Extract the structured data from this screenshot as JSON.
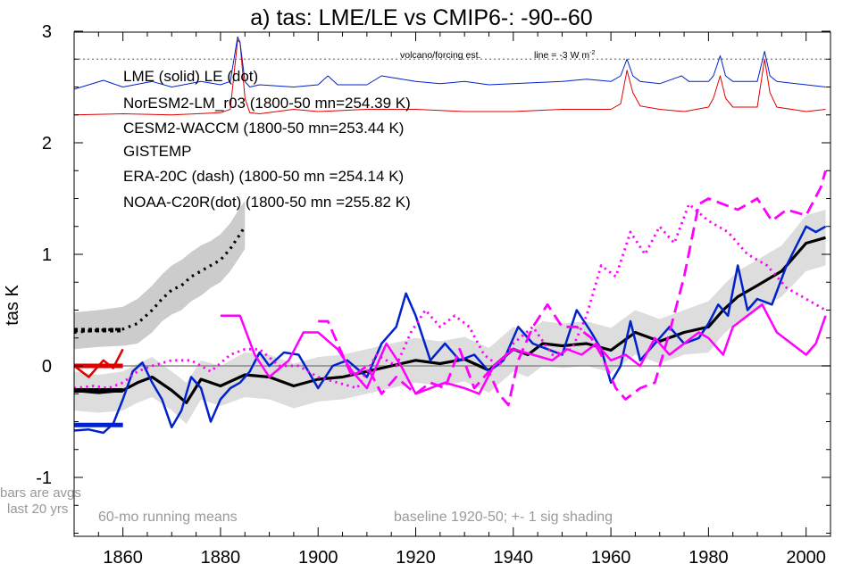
{
  "chart_data": {
    "type": "line",
    "title": "a) tas: LME/LE vs CMIP6-: -90--60",
    "xlabel": "",
    "ylabel": "tas K",
    "xlim": [
      1850,
      2005
    ],
    "ylim": [
      -1.5,
      3.05
    ],
    "xticks": [
      1860,
      1880,
      1900,
      1920,
      1940,
      1960,
      1980,
      2000
    ],
    "yticks": [
      -1,
      0,
      1,
      2,
      3
    ],
    "colors": {
      "red": "#e00000",
      "blue": "#0022cc",
      "magenta": "#ff00ff",
      "black": "#000000",
      "gray": "#999999",
      "shade": "#cccccc"
    },
    "legend": [
      {
        "text": "LME (solid)   LE (dot)",
        "color": "#000000"
      },
      {
        "text": "NorESM2-LM_r03 (1800-50 mn=254.39 K)",
        "color": "#e00000"
      },
      {
        "text": "CESM2-WACCM (1800-50 mn=253.44 K)",
        "color": "#0022cc"
      },
      {
        "text": "GISTEMP",
        "color": "#ff00ff"
      },
      {
        "text": "ERA-20C (dash) (1800-50 mn =254.14 K)",
        "color": "#ff00ff"
      },
      {
        "text": "NOAA-C20R(dot) (1800-50 mn =255.82 K)",
        "color": "#ff00ff"
      }
    ],
    "annotations": {
      "volcano": "volcano/forcing est.",
      "line": "line = -3 W m",
      "line_sup": "-2",
      "bars1": "bars are avgs",
      "bars2": "last 20 yrs",
      "running": "60-mo running means",
      "baseline": "baseline 1920-50; +- 1 sig shading"
    },
    "reference_lines": {
      "zero": 0,
      "volcano_threshold": 2.75
    },
    "series": [
      {
        "name": "LME mean",
        "color": "#000000",
        "style": "solid",
        "width": 3.2,
        "x": [
          1850,
          1855,
          1860,
          1863,
          1866,
          1870,
          1873,
          1876,
          1880,
          1885,
          1890,
          1895,
          1900,
          1905,
          1910,
          1915,
          1920,
          1925,
          1930,
          1935,
          1940,
          1943,
          1946,
          1950,
          1955,
          1960,
          1965,
          1970,
          1975,
          1980,
          1983,
          1986,
          1990,
          1995,
          2000,
          2004
        ],
        "y": [
          -0.22,
          -0.24,
          -0.22,
          -0.15,
          -0.1,
          -0.22,
          -0.33,
          -0.12,
          -0.18,
          -0.08,
          -0.1,
          -0.18,
          -0.12,
          -0.1,
          -0.05,
          0.0,
          0.05,
          0.02,
          0.06,
          -0.04,
          0.15,
          0.1,
          0.2,
          0.18,
          0.2,
          0.14,
          0.3,
          0.22,
          0.3,
          0.35,
          0.5,
          0.62,
          0.72,
          0.85,
          1.1,
          1.15
        ]
      },
      {
        "name": "LE mean",
        "color": "#000000",
        "style": "dot",
        "width": 3.2,
        "x": [
          1850,
          1855,
          1860,
          1863,
          1866,
          1868,
          1870,
          1872,
          1874,
          1876,
          1878,
          1880,
          1882,
          1884,
          1885
        ],
        "y": [
          0.3,
          0.32,
          0.33,
          0.38,
          0.5,
          0.6,
          0.68,
          0.72,
          0.8,
          0.85,
          0.9,
          0.95,
          1.05,
          1.18,
          1.25
        ]
      },
      {
        "name": "NorESM2-LM_r03",
        "color": "#e00000",
        "style": "solid",
        "width": 2.5,
        "x": [
          1850,
          1853,
          1856,
          1858,
          1860
        ],
        "y": [
          0.0,
          -0.1,
          0.05,
          -0.02,
          0.15
        ]
      },
      {
        "name": "CESM2-WACCM",
        "color": "#0022cc",
        "style": "solid",
        "width": 2.5,
        "x": [
          1850,
          1853,
          1856,
          1858,
          1860,
          1862,
          1864,
          1866,
          1868,
          1870,
          1872,
          1874,
          1876,
          1878,
          1880,
          1882,
          1884,
          1886,
          1888,
          1890,
          1893,
          1896,
          1900,
          1903,
          1906,
          1910,
          1913,
          1916,
          1918,
          1920,
          1923,
          1926,
          1929,
          1932,
          1935,
          1938,
          1941,
          1944,
          1947,
          1950,
          1953,
          1956,
          1958,
          1960,
          1962,
          1964,
          1966,
          1969,
          1972,
          1975,
          1978,
          1980,
          1982,
          1984,
          1986,
          1988,
          1990,
          1993,
          1996,
          2000,
          2002,
          2004
        ],
        "y": [
          -0.58,
          -0.57,
          -0.6,
          -0.52,
          -0.3,
          -0.05,
          0.03,
          -0.15,
          -0.3,
          -0.55,
          -0.4,
          -0.1,
          -0.2,
          -0.5,
          -0.3,
          -0.2,
          -0.15,
          -0.05,
          0.12,
          0.0,
          0.12,
          0.1,
          -0.2,
          0.0,
          0.05,
          -0.1,
          0.2,
          0.35,
          0.65,
          0.45,
          0.05,
          0.2,
          0.05,
          0.1,
          -0.05,
          0.05,
          0.35,
          0.2,
          0.15,
          0.1,
          0.5,
          0.3,
          0.15,
          -0.15,
          0.0,
          0.4,
          0.05,
          0.2,
          0.35,
          0.2,
          0.25,
          0.38,
          0.55,
          0.45,
          0.9,
          0.5,
          0.6,
          0.55,
          0.9,
          1.25,
          1.2,
          1.25
        ]
      },
      {
        "name": "GISTEMP",
        "color": "#ff00ff",
        "style": "solid",
        "width": 2.5,
        "x": [
          1880,
          1884,
          1887,
          1890,
          1894,
          1897,
          1900,
          1904,
          1907,
          1910,
          1914,
          1917,
          1920,
          1923,
          1926,
          1930,
          1933,
          1936,
          1940,
          1944,
          1948,
          1951,
          1954,
          1957,
          1960,
          1963,
          1966,
          1969,
          1972,
          1975,
          1978,
          1980,
          1983,
          1985,
          1988,
          1991,
          1994,
          1997,
          2000,
          2002,
          2004
        ],
        "y": [
          0.45,
          0.45,
          0.1,
          -0.1,
          0.05,
          0.3,
          0.3,
          0.15,
          -0.05,
          -0.2,
          0.2,
          0.0,
          -0.25,
          -0.2,
          -0.15,
          -0.2,
          -0.25,
          0.0,
          0.15,
          0.1,
          0.05,
          0.15,
          0.1,
          0.2,
          0.05,
          0.1,
          0.0,
          0.25,
          0.1,
          0.2,
          0.3,
          0.25,
          0.1,
          0.35,
          0.45,
          0.55,
          0.3,
          0.2,
          0.1,
          0.2,
          0.45
        ]
      },
      {
        "name": "ERA-20C",
        "color": "#ff00ff",
        "style": "dash",
        "width": 2.8,
        "x": [
          1900,
          1902,
          1905,
          1907,
          1910,
          1913,
          1916,
          1920,
          1923,
          1926,
          1929,
          1932,
          1935,
          1937,
          1939,
          1941,
          1944,
          1947,
          1950,
          1953,
          1956,
          1958,
          1961,
          1963,
          1966,
          1969,
          1972,
          1975,
          1978,
          1980,
          1983,
          1986,
          1990,
          1993,
          1996,
          2000,
          2003,
          2004
        ],
        "y": [
          0.4,
          0.4,
          0.1,
          -0.1,
          0.0,
          -0.25,
          -0.1,
          -0.25,
          -0.15,
          -0.2,
          0.15,
          -0.2,
          -0.05,
          -0.25,
          -0.35,
          0.05,
          0.35,
          0.55,
          0.35,
          0.35,
          0.25,
          0.1,
          -0.2,
          -0.3,
          -0.2,
          -0.15,
          0.3,
          0.8,
          1.45,
          1.5,
          1.45,
          1.4,
          1.5,
          1.3,
          1.4,
          1.35,
          1.6,
          1.75
        ]
      },
      {
        "name": "NOAA-C20R",
        "color": "#ff00ff",
        "style": "dot",
        "width": 2.8,
        "x": [
          1850,
          1854,
          1857,
          1860,
          1863,
          1866,
          1870,
          1874,
          1878,
          1882,
          1885,
          1888,
          1892,
          1896,
          1900,
          1904,
          1908,
          1912,
          1916,
          1919,
          1922,
          1925,
          1928,
          1931,
          1934,
          1937,
          1940,
          1944,
          1948,
          1952,
          1955,
          1958,
          1961,
          1964,
          1967,
          1970,
          1973,
          1976,
          1980,
          1984,
          1988,
          1992,
          1996,
          2000,
          2004
        ],
        "y": [
          -0.2,
          -0.18,
          -0.2,
          -0.15,
          -0.05,
          0.0,
          0.05,
          0.05,
          -0.05,
          0.1,
          0.15,
          0.15,
          0.0,
          0.0,
          -0.1,
          -0.15,
          -0.2,
          0.1,
          0.0,
          0.3,
          0.5,
          0.35,
          0.45,
          0.35,
          0.1,
          0.0,
          0.2,
          0.35,
          0.1,
          0.15,
          0.45,
          0.9,
          0.8,
          1.2,
          1.0,
          1.25,
          1.1,
          1.45,
          1.3,
          1.2,
          1.0,
          0.9,
          0.7,
          0.6,
          0.5
        ]
      },
      {
        "name": "NorESM2-LM forcing",
        "color": "#e00000",
        "style": "solid",
        "width": 1.0,
        "x": [
          1850,
          1860,
          1870,
          1880,
          1882,
          1883.5,
          1884,
          1885,
          1886,
          1888,
          1895,
          1900,
          1910,
          1920,
          1930,
          1940,
          1950,
          1960,
          1962,
          1963.3,
          1964.5,
          1966,
          1970,
          1975,
          1980,
          1981,
          1982.4,
          1983.5,
          1985,
          1990,
          1991.5,
          1992.6,
          1994,
          2000,
          2004
        ],
        "y": [
          2.25,
          2.26,
          2.25,
          2.27,
          2.3,
          2.92,
          2.9,
          2.4,
          2.27,
          2.26,
          2.3,
          2.28,
          2.3,
          2.3,
          2.28,
          2.28,
          2.3,
          2.3,
          2.35,
          2.65,
          2.45,
          2.33,
          2.3,
          2.28,
          2.32,
          2.4,
          2.6,
          2.4,
          2.32,
          2.32,
          2.75,
          2.45,
          2.32,
          2.28,
          2.3
        ]
      },
      {
        "name": "CESM2-WACCM forcing",
        "color": "#0022cc",
        "style": "solid",
        "width": 1.0,
        "x": [
          1850,
          1856,
          1860,
          1866,
          1870,
          1876,
          1880,
          1882,
          1883.5,
          1884,
          1885,
          1886,
          1888,
          1895,
          1900,
          1902,
          1904,
          1910,
          1913,
          1920,
          1925,
          1930,
          1935,
          1940,
          1950,
          1955,
          1960,
          1962,
          1963.3,
          1964.5,
          1966,
          1970,
          1974.5,
          1976,
          1980,
          1981,
          1982.4,
          1983.5,
          1985,
          1990,
          1991.5,
          1992.6,
          1994,
          2000,
          2004
        ],
        "y": [
          2.48,
          2.56,
          2.5,
          2.55,
          2.5,
          2.55,
          2.52,
          2.55,
          2.95,
          2.9,
          2.55,
          2.5,
          2.52,
          2.5,
          2.52,
          2.6,
          2.52,
          2.52,
          2.6,
          2.55,
          2.53,
          2.55,
          2.52,
          2.53,
          2.55,
          2.57,
          2.55,
          2.6,
          2.75,
          2.6,
          2.55,
          2.53,
          2.6,
          2.55,
          2.55,
          2.6,
          2.78,
          2.6,
          2.55,
          2.55,
          2.82,
          2.6,
          2.55,
          2.52,
          2.5
        ]
      }
    ],
    "bands": [
      {
        "name": "LE +-1 sig",
        "color": "#cccccc",
        "x": [
          1850,
          1855,
          1860,
          1863,
          1866,
          1868,
          1870,
          1872,
          1874,
          1876,
          1878,
          1880,
          1882,
          1884,
          1885
        ],
        "upper": [
          0.48,
          0.5,
          0.53,
          0.6,
          0.72,
          0.82,
          0.9,
          0.95,
          1.02,
          1.08,
          1.12,
          1.18,
          1.28,
          1.42,
          1.48
        ],
        "lower": [
          0.15,
          0.17,
          0.18,
          0.2,
          0.3,
          0.4,
          0.46,
          0.5,
          0.58,
          0.63,
          0.7,
          0.75,
          0.85,
          0.98,
          1.05
        ]
      },
      {
        "name": "LME +-1 sig",
        "color": "#dddddd",
        "x": [
          1850,
          1855,
          1860,
          1863,
          1866,
          1870,
          1873,
          1876,
          1880,
          1885,
          1890,
          1895,
          1900,
          1905,
          1910,
          1915,
          1920,
          1925,
          1930,
          1935,
          1940,
          1943,
          1946,
          1950,
          1955,
          1960,
          1965,
          1970,
          1975,
          1980,
          1983,
          1986,
          1990,
          1995,
          2000,
          2004
        ],
        "upper": [
          -0.05,
          -0.08,
          -0.05,
          0.02,
          0.08,
          -0.05,
          -0.15,
          0.05,
          0.0,
          0.12,
          0.1,
          0.02,
          0.08,
          0.1,
          0.15,
          0.2,
          0.25,
          0.22,
          0.26,
          0.16,
          0.35,
          0.3,
          0.4,
          0.38,
          0.4,
          0.34,
          0.5,
          0.42,
          0.5,
          0.58,
          0.72,
          0.85,
          0.95,
          1.08,
          1.35,
          1.4
        ],
        "lower": [
          -0.4,
          -0.42,
          -0.4,
          -0.33,
          -0.28,
          -0.4,
          -0.52,
          -0.3,
          -0.36,
          -0.28,
          -0.3,
          -0.38,
          -0.32,
          -0.3,
          -0.25,
          -0.2,
          -0.15,
          -0.18,
          -0.14,
          -0.24,
          -0.05,
          -0.1,
          0.0,
          -0.02,
          0.0,
          -0.06,
          0.1,
          0.02,
          0.1,
          0.12,
          0.28,
          0.4,
          0.5,
          0.62,
          0.85,
          0.9
        ]
      }
    ],
    "last20_bars": [
      {
        "name": "LE avg",
        "color": "#000000",
        "style": "dot",
        "value": 0.32
      },
      {
        "name": "LME avg",
        "color": "#000000",
        "style": "solid",
        "value": -0.22
      },
      {
        "name": "NorESM2-LM avg",
        "color": "#e00000",
        "style": "solid",
        "value": 0.0
      },
      {
        "name": "CESM2-WACCM avg",
        "color": "#0022cc",
        "style": "solid",
        "value": -0.53
      }
    ]
  }
}
